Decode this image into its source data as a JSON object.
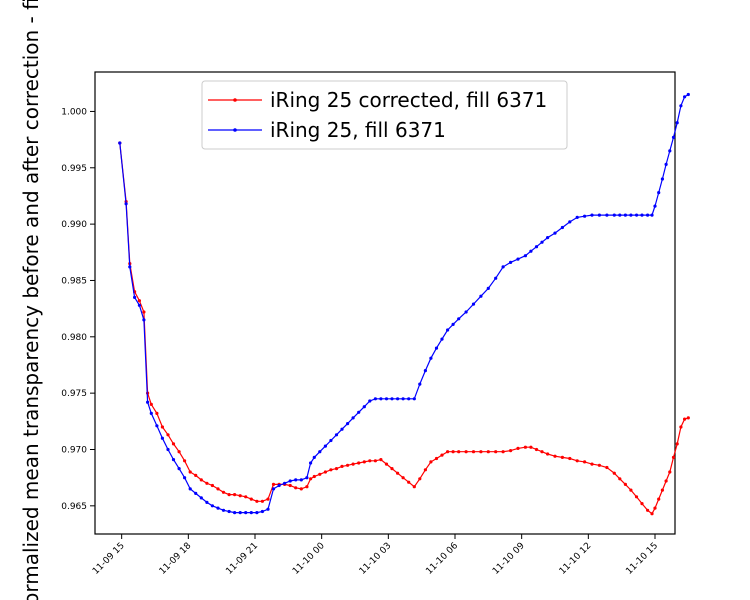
{
  "chart_data": {
    "type": "line",
    "ylabel": "Normalized mean transparency before and after correction - fill",
    "xlabel": "",
    "title": "",
    "x_ticks": [
      "11-09 15",
      "11-09 18",
      "11-09 21",
      "11-10 00",
      "11-10 03",
      "11-10 06",
      "11-10 09",
      "11-10 12",
      "11-10 15"
    ],
    "y_ticks": [
      "0.965",
      "0.970",
      "0.975",
      "0.980",
      "0.985",
      "0.990",
      "0.995",
      "1.000"
    ],
    "xlim_hours": [
      14.2,
      15.9
    ],
    "xlim": [
      "11-09 13:48",
      "11-10 15:54"
    ],
    "ylim": [
      0.9625,
      1.0035
    ],
    "grid": false,
    "legend_position": "top-center",
    "series": [
      {
        "name": "iRing 25 corrected, fill 6371",
        "color": "#ff0000",
        "points": [
          [
            "11-09 14:55",
            0.9972
          ],
          [
            "11-09 15:12",
            0.992
          ],
          [
            "11-09 15:22",
            0.9865
          ],
          [
            "11-09 15:35",
            0.984
          ],
          [
            "11-09 15:48",
            0.9832
          ],
          [
            "11-09 16:00",
            0.9822
          ],
          [
            "11-09 16:10",
            0.975
          ],
          [
            "11-09 16:20",
            0.974
          ],
          [
            "11-09 16:35",
            0.9732
          ],
          [
            "11-09 16:50",
            0.972
          ],
          [
            "11-09 17:05",
            0.9713
          ],
          [
            "11-09 17:20",
            0.9705
          ],
          [
            "11-09 17:35",
            0.9698
          ],
          [
            "11-09 17:50",
            0.969
          ],
          [
            "11-09 18:05",
            0.968
          ],
          [
            "11-09 18:20",
            0.9677
          ],
          [
            "11-09 18:35",
            0.9673
          ],
          [
            "11-09 18:50",
            0.967
          ],
          [
            "11-09 19:05",
            0.9668
          ],
          [
            "11-09 19:20",
            0.9665
          ],
          [
            "11-09 19:35",
            0.9662
          ],
          [
            "11-09 19:50",
            0.966
          ],
          [
            "11-09 20:05",
            0.966
          ],
          [
            "11-09 20:20",
            0.9659
          ],
          [
            "11-09 20:35",
            0.9658
          ],
          [
            "11-09 20:50",
            0.9656
          ],
          [
            "11-09 21:05",
            0.9654
          ],
          [
            "11-09 21:20",
            0.9654
          ],
          [
            "11-09 21:35",
            0.9656
          ],
          [
            "11-09 21:50",
            0.9669
          ],
          [
            "11-09 22:05",
            0.9669
          ],
          [
            "11-09 22:20",
            0.9669
          ],
          [
            "11-09 22:35",
            0.9668
          ],
          [
            "11-09 22:50",
            0.9666
          ],
          [
            "11-09 23:05",
            0.9665
          ],
          [
            "11-09 23:20",
            0.9667
          ],
          [
            "11-09 23:30",
            0.9674
          ],
          [
            "11-09 23:40",
            0.9676
          ],
          [
            "11-09 23:55",
            0.9678
          ],
          [
            "11-10 00:10",
            0.968
          ],
          [
            "11-10 00:25",
            0.9682
          ],
          [
            "11-10 00:40",
            0.9683
          ],
          [
            "11-10 00:55",
            0.9685
          ],
          [
            "11-10 01:10",
            0.9686
          ],
          [
            "11-10 01:25",
            0.9687
          ],
          [
            "11-10 01:40",
            0.9688
          ],
          [
            "11-10 01:55",
            0.9689
          ],
          [
            "11-10 02:10",
            0.969
          ],
          [
            "11-10 02:25",
            0.969
          ],
          [
            "11-10 02:40",
            0.9691
          ],
          [
            "11-10 02:55",
            0.9687
          ],
          [
            "11-10 03:10",
            0.9683
          ],
          [
            "11-10 03:25",
            0.9679
          ],
          [
            "11-10 03:40",
            0.9675
          ],
          [
            "11-10 03:55",
            0.9671
          ],
          [
            "11-10 04:10",
            0.9667
          ],
          [
            "11-10 04:25",
            0.9674
          ],
          [
            "11-10 04:40",
            0.9682
          ],
          [
            "11-10 04:55",
            0.9689
          ],
          [
            "11-10 05:10",
            0.9692
          ],
          [
            "11-10 05:25",
            0.9695
          ],
          [
            "11-10 05:40",
            0.9698
          ],
          [
            "11-10 05:55",
            0.9698
          ],
          [
            "11-10 06:10",
            0.9698
          ],
          [
            "11-10 06:30",
            0.9698
          ],
          [
            "11-10 06:50",
            0.9698
          ],
          [
            "11-10 07:10",
            0.9698
          ],
          [
            "11-10 07:30",
            0.9698
          ],
          [
            "11-10 07:50",
            0.9698
          ],
          [
            "11-10 08:10",
            0.9698
          ],
          [
            "11-10 08:30",
            0.9699
          ],
          [
            "11-10 08:50",
            0.9701
          ],
          [
            "11-10 09:10",
            0.9702
          ],
          [
            "11-10 09:25",
            0.9702
          ],
          [
            "11-10 09:40",
            0.97
          ],
          [
            "11-10 09:55",
            0.9698
          ],
          [
            "11-10 10:10",
            0.9696
          ],
          [
            "11-10 10:30",
            0.9694
          ],
          [
            "11-10 10:50",
            0.9693
          ],
          [
            "11-10 11:10",
            0.9692
          ],
          [
            "11-10 11:30",
            0.969
          ],
          [
            "11-10 11:50",
            0.9689
          ],
          [
            "11-10 12:10",
            0.9687
          ],
          [
            "11-10 12:30",
            0.9686
          ],
          [
            "11-10 12:50",
            0.9684
          ],
          [
            "11-10 13:10",
            0.9679
          ],
          [
            "11-10 13:25",
            0.9674
          ],
          [
            "11-10 13:40",
            0.9669
          ],
          [
            "11-10 13:55",
            0.9664
          ],
          [
            "11-10 14:10",
            0.9658
          ],
          [
            "11-10 14:25",
            0.9652
          ],
          [
            "11-10 14:40",
            0.9646
          ],
          [
            "11-10 14:52",
            0.9643
          ],
          [
            "11-10 15:00",
            0.9648
          ],
          [
            "11-10 15:10",
            0.9656
          ],
          [
            "11-10 15:20",
            0.9664
          ],
          [
            "11-10 15:30",
            0.9672
          ],
          [
            "11-10 15:40",
            0.968
          ],
          [
            "11-10 15:50",
            0.9693
          ],
          [
            "11-10 16:00",
            0.9705
          ],
          [
            "11-10 16:10",
            0.972
          ],
          [
            "11-10 16:20",
            0.9727
          ],
          [
            "11-10 16:30",
            0.9728
          ]
        ]
      },
      {
        "name": "iRing 25, fill 6371",
        "color": "#0000ff",
        "points": [
          [
            "11-09 14:55",
            0.9972
          ],
          [
            "11-09 15:12",
            0.9918
          ],
          [
            "11-09 15:22",
            0.9862
          ],
          [
            "11-09 15:35",
            0.9835
          ],
          [
            "11-09 15:48",
            0.9828
          ],
          [
            "11-09 16:00",
            0.9815
          ],
          [
            "11-09 16:10",
            0.9742
          ],
          [
            "11-09 16:20",
            0.9732
          ],
          [
            "11-09 16:35",
            0.9721
          ],
          [
            "11-09 16:50",
            0.971
          ],
          [
            "11-09 17:05",
            0.97
          ],
          [
            "11-09 17:20",
            0.9691
          ],
          [
            "11-09 17:35",
            0.9683
          ],
          [
            "11-09 17:50",
            0.9675
          ],
          [
            "11-09 18:05",
            0.9665
          ],
          [
            "11-09 18:20",
            0.9661
          ],
          [
            "11-09 18:35",
            0.9657
          ],
          [
            "11-09 18:50",
            0.9653
          ],
          [
            "11-09 19:05",
            0.965
          ],
          [
            "11-09 19:20",
            0.9648
          ],
          [
            "11-09 19:35",
            0.9646
          ],
          [
            "11-09 19:50",
            0.9645
          ],
          [
            "11-09 20:05",
            0.9644
          ],
          [
            "11-09 20:20",
            0.9644
          ],
          [
            "11-09 20:35",
            0.9644
          ],
          [
            "11-09 20:50",
            0.9644
          ],
          [
            "11-09 21:05",
            0.9644
          ],
          [
            "11-09 21:20",
            0.9645
          ],
          [
            "11-09 21:35",
            0.9647
          ],
          [
            "11-09 21:50",
            0.9665
          ],
          [
            "11-09 22:05",
            0.9668
          ],
          [
            "11-09 22:20",
            0.967
          ],
          [
            "11-09 22:35",
            0.9672
          ],
          [
            "11-09 22:50",
            0.9673
          ],
          [
            "11-09 23:05",
            0.9673
          ],
          [
            "11-09 23:20",
            0.9675
          ],
          [
            "11-09 23:30",
            0.9688
          ],
          [
            "11-09 23:40",
            0.9693
          ],
          [
            "11-09 23:55",
            0.9698
          ],
          [
            "11-10 00:10",
            0.9703
          ],
          [
            "11-10 00:25",
            0.9708
          ],
          [
            "11-10 00:40",
            0.9713
          ],
          [
            "11-10 00:55",
            0.9718
          ],
          [
            "11-10 01:10",
            0.9723
          ],
          [
            "11-10 01:25",
            0.9728
          ],
          [
            "11-10 01:40",
            0.9733
          ],
          [
            "11-10 01:55",
            0.9738
          ],
          [
            "11-10 02:10",
            0.9743
          ],
          [
            "11-10 02:25",
            0.9745
          ],
          [
            "11-10 02:40",
            0.9745
          ],
          [
            "11-10 02:55",
            0.9745
          ],
          [
            "11-10 03:10",
            0.9745
          ],
          [
            "11-10 03:25",
            0.9745
          ],
          [
            "11-10 03:40",
            0.9745
          ],
          [
            "11-10 03:55",
            0.9745
          ],
          [
            "11-10 04:10",
            0.9745
          ],
          [
            "11-10 04:25",
            0.9758
          ],
          [
            "11-10 04:40",
            0.977
          ],
          [
            "11-10 04:55",
            0.9781
          ],
          [
            "11-10 05:10",
            0.979
          ],
          [
            "11-10 05:25",
            0.9798
          ],
          [
            "11-10 05:40",
            0.9806
          ],
          [
            "11-10 05:55",
            0.9811
          ],
          [
            "11-10 06:10",
            0.9816
          ],
          [
            "11-10 06:30",
            0.9822
          ],
          [
            "11-10 06:50",
            0.9829
          ],
          [
            "11-10 07:10",
            0.9836
          ],
          [
            "11-10 07:30",
            0.9843
          ],
          [
            "11-10 07:50",
            0.9852
          ],
          [
            "11-10 08:10",
            0.9862
          ],
          [
            "11-10 08:30",
            0.9866
          ],
          [
            "11-10 08:50",
            0.9869
          ],
          [
            "11-10 09:10",
            0.9872
          ],
          [
            "11-10 09:25",
            0.9876
          ],
          [
            "11-10 09:40",
            0.988
          ],
          [
            "11-10 09:55",
            0.9884
          ],
          [
            "11-10 10:10",
            0.9888
          ],
          [
            "11-10 10:30",
            0.9892
          ],
          [
            "11-10 10:50",
            0.9897
          ],
          [
            "11-10 11:10",
            0.9902
          ],
          [
            "11-10 11:30",
            0.9906
          ],
          [
            "11-10 11:50",
            0.9907
          ],
          [
            "11-10 12:10",
            0.9908
          ],
          [
            "11-10 12:30",
            0.9908
          ],
          [
            "11-10 12:50",
            0.9908
          ],
          [
            "11-10 13:10",
            0.9908
          ],
          [
            "11-10 13:25",
            0.9908
          ],
          [
            "11-10 13:40",
            0.9908
          ],
          [
            "11-10 13:55",
            0.9908
          ],
          [
            "11-10 14:10",
            0.9908
          ],
          [
            "11-10 14:25",
            0.9908
          ],
          [
            "11-10 14:40",
            0.9908
          ],
          [
            "11-10 14:52",
            0.9908
          ],
          [
            "11-10 15:00",
            0.9916
          ],
          [
            "11-10 15:10",
            0.9928
          ],
          [
            "11-10 15:20",
            0.994
          ],
          [
            "11-10 15:30",
            0.9953
          ],
          [
            "11-10 15:40",
            0.9965
          ],
          [
            "11-10 15:50",
            0.9977
          ],
          [
            "11-10 16:00",
            0.999
          ],
          [
            "11-10 16:10",
            1.0005
          ],
          [
            "11-10 16:20",
            1.0013
          ],
          [
            "11-10 16:30",
            1.0015
          ]
        ]
      }
    ]
  }
}
